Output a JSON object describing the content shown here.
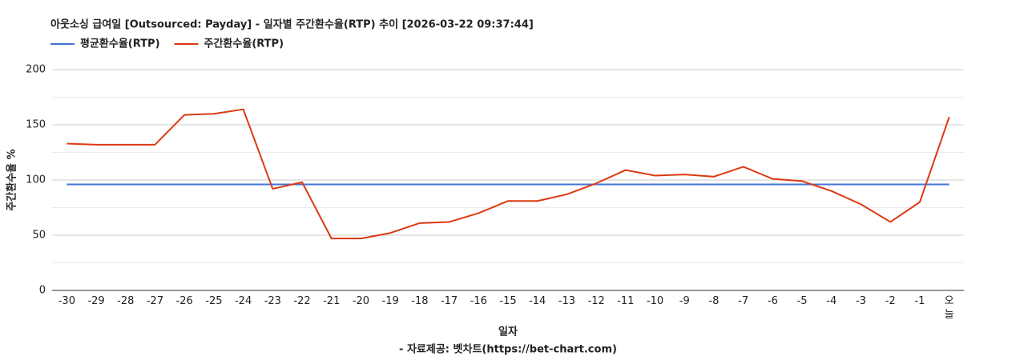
{
  "chart_data": {
    "type": "line",
    "title": "아웃소싱 급여일 [Outsourced: Payday] - 일자별 주간환수율(RTP) 추이 [2026-03-22 09:37:44]",
    "x_label": "일자",
    "y_label": "주간환수율 %",
    "footer": "- 자료제공: 벳차트(https://bet-chart.com)",
    "categories": [
      "-30",
      "-29",
      "-28",
      "-27",
      "-26",
      "-25",
      "-24",
      "-23",
      "-22",
      "-21",
      "-20",
      "-19",
      "-18",
      "-17",
      "-16",
      "-15",
      "-14",
      "-13",
      "-12",
      "-11",
      "-10",
      "-9",
      "-8",
      "-7",
      "-6",
      "-5",
      "-4",
      "-3",
      "-2",
      "-1",
      "오늘"
    ],
    "series": [
      {
        "name": "평균환수율(RTP)",
        "color": "#4472d8",
        "values": [
          96,
          96,
          96,
          96,
          96,
          96,
          96,
          96,
          96,
          96,
          96,
          96,
          96,
          96,
          96,
          96,
          96,
          96,
          96,
          96,
          96,
          96,
          96,
          96,
          96,
          96,
          96,
          96,
          96,
          96,
          96
        ]
      },
      {
        "name": "주간환수율(RTP)",
        "color": "#dc3912",
        "values": [
          133,
          132,
          132,
          132,
          159,
          160,
          164,
          92,
          98,
          47,
          47,
          52,
          61,
          62,
          70,
          81,
          81,
          87,
          97,
          109,
          104,
          105,
          103,
          112,
          101,
          99,
          90,
          78,
          62,
          80,
          157
        ]
      }
    ],
    "ylim": [
      0,
      200
    ],
    "yticks": [
      0,
      50,
      100,
      150,
      200
    ],
    "minor_yticks": [
      25,
      75,
      125,
      175
    ],
    "grid": true
  }
}
